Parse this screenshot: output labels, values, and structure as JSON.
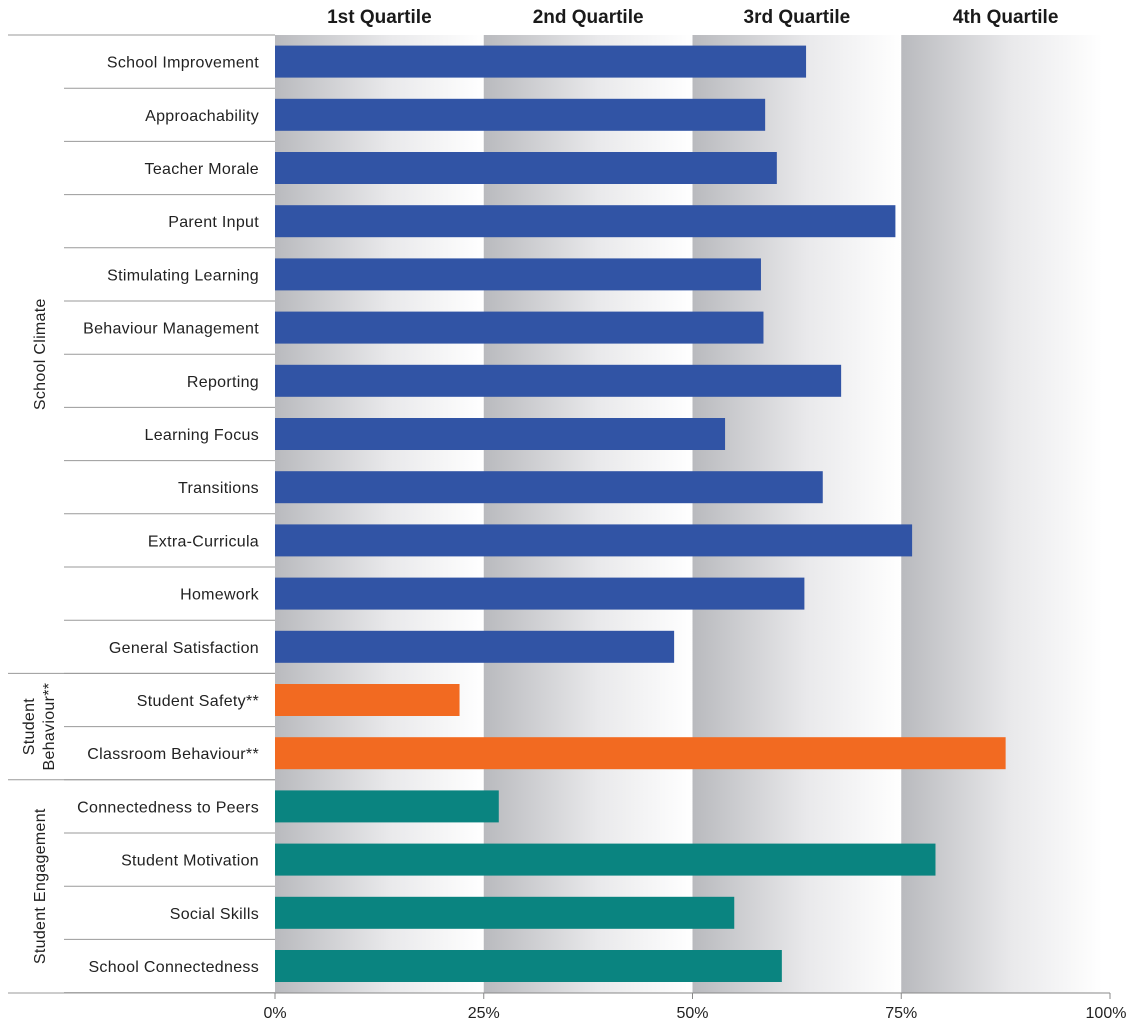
{
  "chart_data": {
    "type": "bar",
    "orientation": "horizontal",
    "quartile_headers": [
      "1st Quartile",
      "2nd Quartile",
      "3rd Quartile",
      "4th Quartile"
    ],
    "xlim": [
      0,
      100
    ],
    "x_ticks": [
      "0%",
      "25%",
      "50%",
      "75%",
      "100%"
    ],
    "groups": [
      {
        "name": "School Climate",
        "color": "#3154a5",
        "categories": [
          "School Improvement",
          "Approachability",
          "Teacher Morale",
          "Parent Input",
          "Stimulating Learning",
          "Behaviour Management",
          "Reporting",
          "Learning Focus",
          "Transitions",
          "Extra-Curricula",
          "Homework",
          "General Satisfaction"
        ],
        "values": [
          63.6,
          58.7,
          60.1,
          74.3,
          58.2,
          58.5,
          67.8,
          53.9,
          65.6,
          76.3,
          63.4,
          47.8
        ]
      },
      {
        "name": "Student Behaviour**",
        "color": "#f26a21",
        "categories": [
          "Student Safety**",
          "Classroom Behaviour**"
        ],
        "values": [
          22.1,
          87.5
        ]
      },
      {
        "name": "Student Engagement",
        "color": "#0a8480",
        "categories": [
          "Connectedness to Peers",
          "Student Motivation",
          "Social Skills",
          "School Connectedness"
        ],
        "values": [
          26.8,
          79.1,
          55.0,
          60.7
        ]
      }
    ]
  }
}
